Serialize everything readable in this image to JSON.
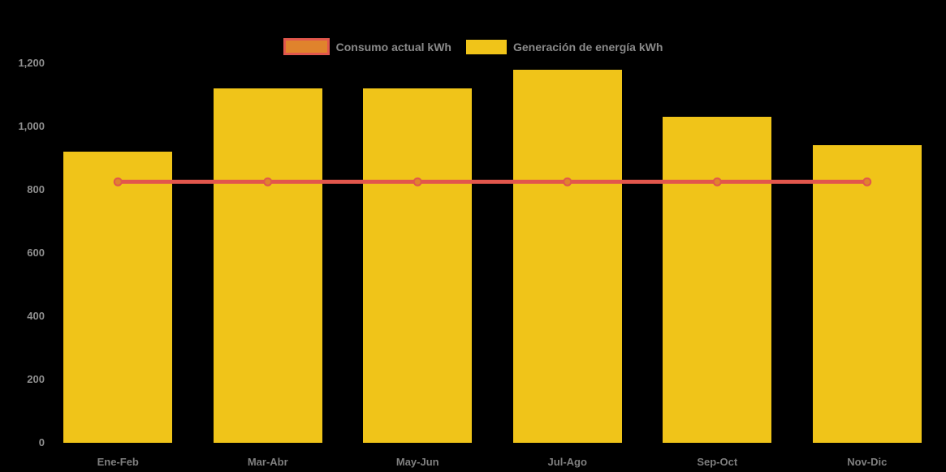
{
  "chart_data": {
    "type": "bar",
    "subtype": "bar-with-line-overlay",
    "title": "",
    "xlabel": "",
    "ylabel": "",
    "categories": [
      "Ene-Feb",
      "Mar-Abr",
      "May-Jun",
      "Jul-Ago",
      "Sep-Oct",
      "Nov-Dic"
    ],
    "series": [
      {
        "name": "Consumo actual kWh",
        "type": "line",
        "color": "#e2574c",
        "marker_fill": "#e0832c",
        "values": [
          825,
          825,
          825,
          825,
          825,
          825
        ]
      },
      {
        "name": "Generación de energía kWh",
        "type": "bar",
        "color": "#f0c419",
        "values": [
          920,
          1120,
          1120,
          1180,
          1030,
          940
        ]
      }
    ],
    "ylim": [
      0,
      1200
    ],
    "yticks": [
      0,
      200,
      400,
      600,
      800,
      1000,
      1200
    ],
    "ytick_labels": [
      "0",
      "200",
      "400",
      "600",
      "800",
      "1,000",
      "1,200"
    ],
    "grid": false,
    "legend_position": "top-center",
    "background_color": "#000000",
    "axis_text_color": "#8a8a8a"
  }
}
